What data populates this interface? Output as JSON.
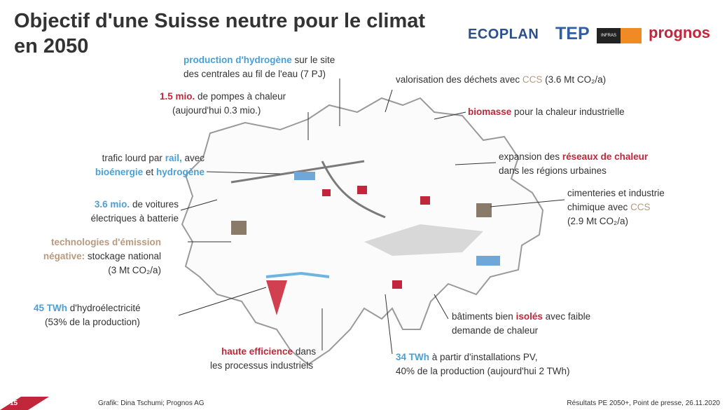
{
  "header": {
    "title": "Objectif d'une Suisse neutre pour le climat en 2050"
  },
  "logos": [
    "ECOPLAN",
    "TEP",
    "INFRAS",
    "prognos"
  ],
  "annotations": [
    {
      "segments": [
        "production d'hydrogène",
        "sur le site",
        "des centrales au fil de l'eau (7 PJ)"
      ]
    },
    {
      "segments": [
        "1.5 mio.",
        "de pompes à chaleur",
        "(aujourd'hui 0.3 mio.)"
      ]
    },
    {
      "segments": [
        "valorisation des déchets avec",
        "CCS",
        "(3.6 Mt CO₂/a)"
      ]
    },
    {
      "segments": [
        "biomasse",
        "pour la chaleur industrielle"
      ]
    },
    {
      "segments": [
        "trafic lourd par",
        "rail,",
        "avec",
        "bioénergie",
        "et",
        "hydrogène"
      ]
    },
    {
      "segments": [
        "expansion des",
        "réseaux de chaleur",
        "dans les régions urbaines"
      ]
    },
    {
      "segments": [
        "3.6 mio.",
        "de voitures",
        "électriques à batterie"
      ]
    },
    {
      "segments": [
        "cimenteries et industrie",
        "chimique avec",
        "CCS",
        "(2.9 Mt CO₂/a)"
      ]
    },
    {
      "segments": [
        "technologies d'émission",
        "négative:",
        "stockage national",
        "(3 Mt CO₂/a)"
      ]
    },
    {
      "segments": [
        "45 TWh",
        "d'hydroélectricité",
        "(53% de la production)"
      ]
    },
    {
      "segments": [
        "bâtiments bien",
        "isolés",
        "avec faible",
        "demande de chaleur"
      ]
    },
    {
      "segments": [
        "haute efficience",
        "dans",
        "les processus industriels"
      ]
    },
    {
      "segments": [
        "34 TWh",
        "à partir d'installations PV,",
        "40% de la production (aujourd'hui 2 TWh)"
      ]
    }
  ],
  "footer": {
    "page": "15",
    "credit": "Grafik: Dina Tschumi; Prognos AG",
    "source": "Résultats PE 2050+, Point de presse, 26.11.2020"
  }
}
